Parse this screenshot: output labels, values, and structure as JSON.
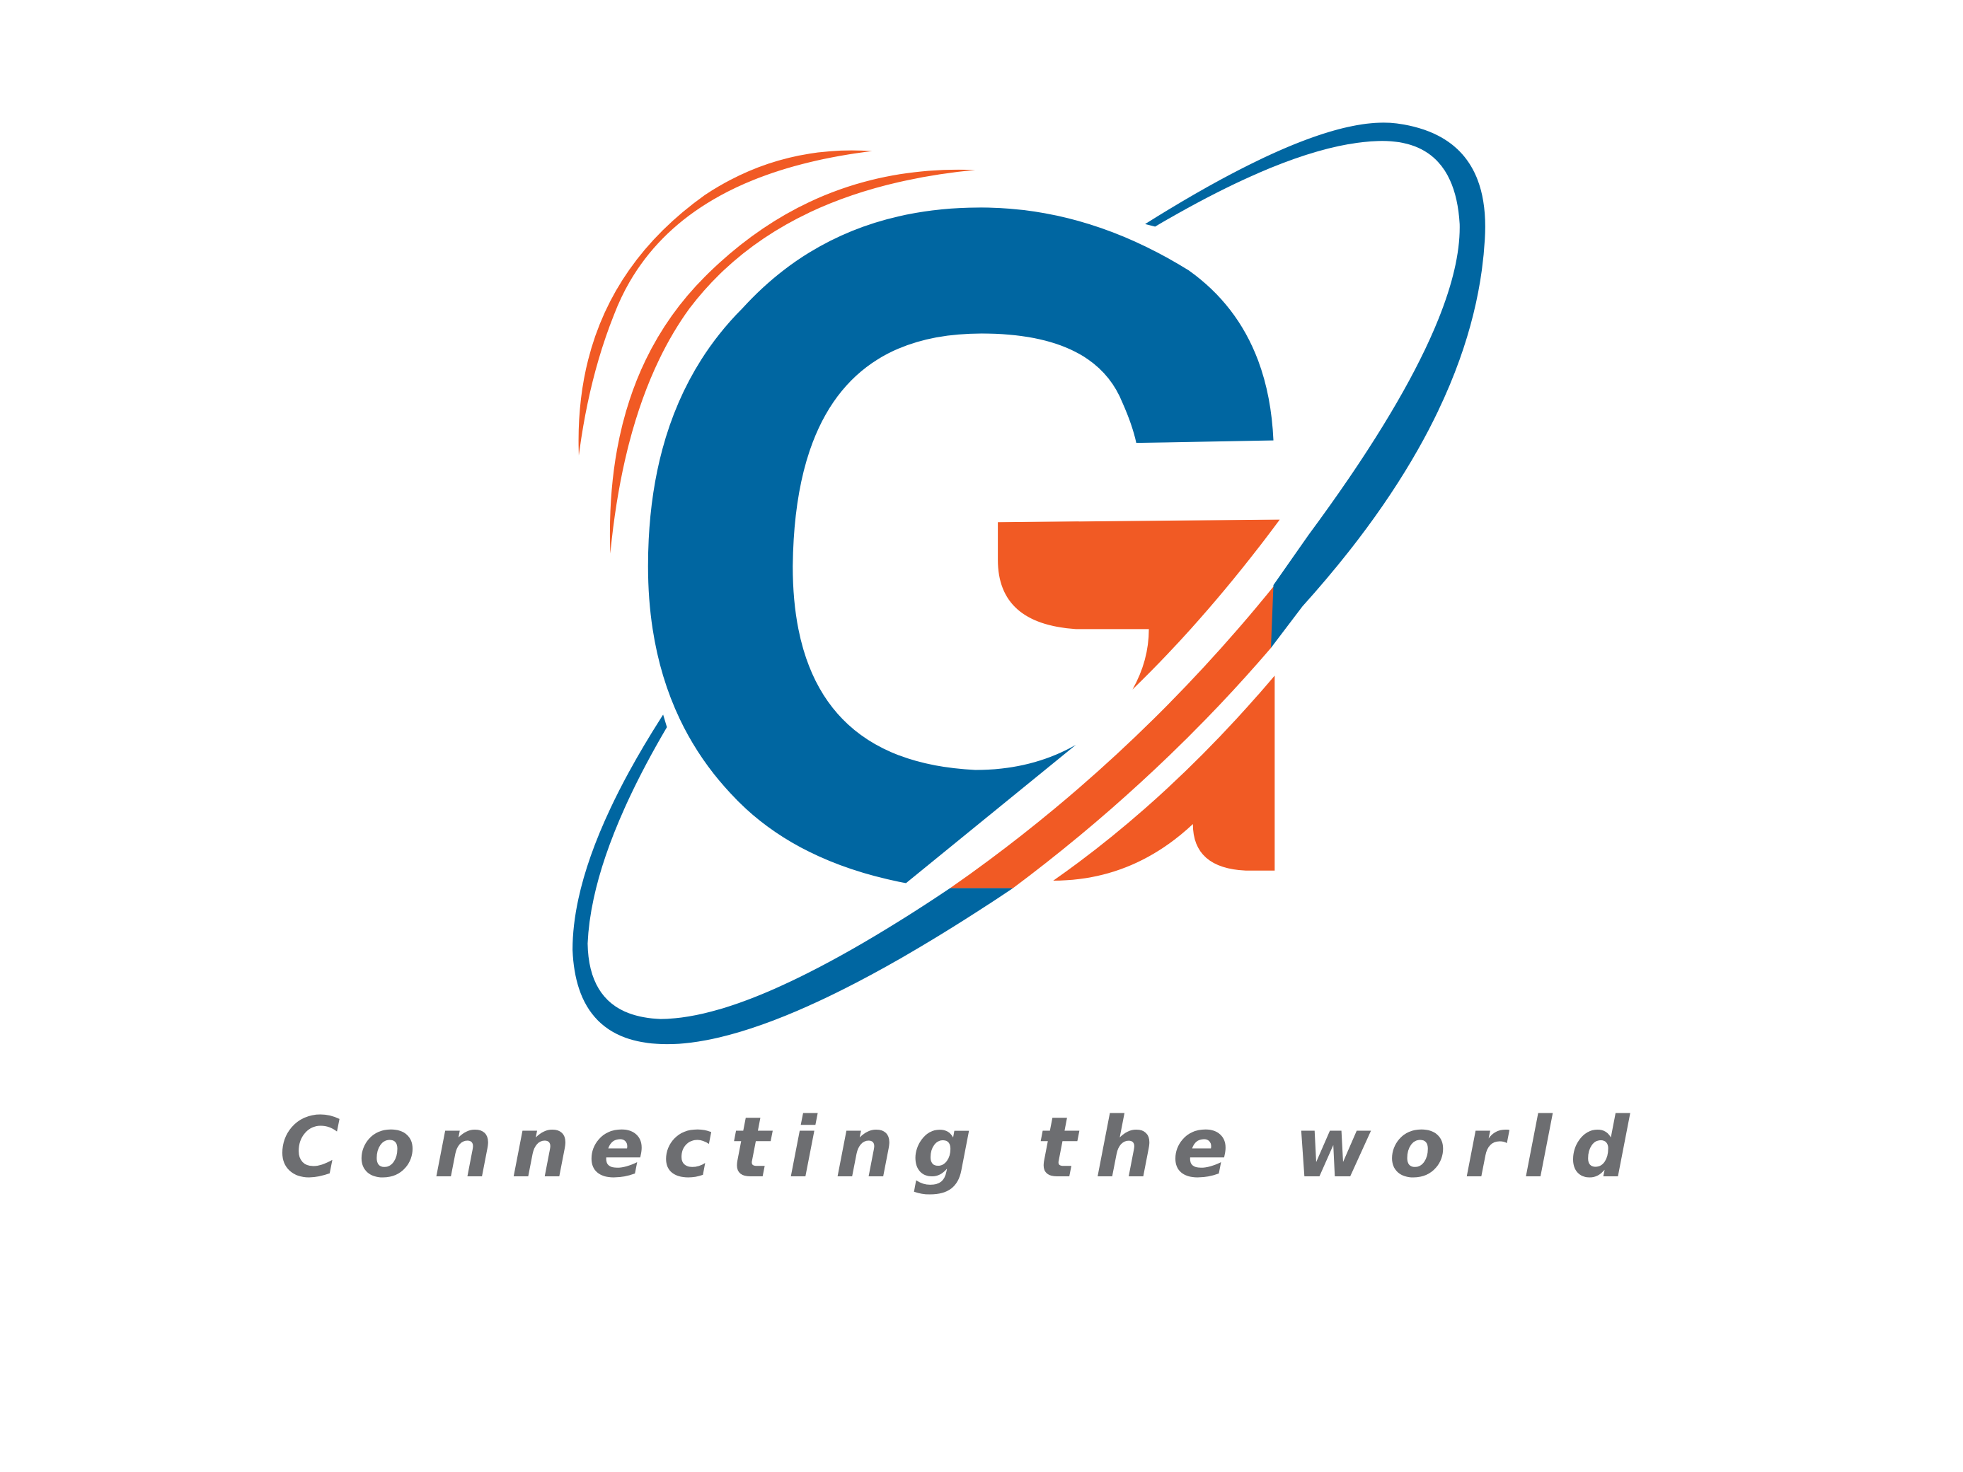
{
  "logo": {
    "tagline": "Connecting the world"
  }
}
